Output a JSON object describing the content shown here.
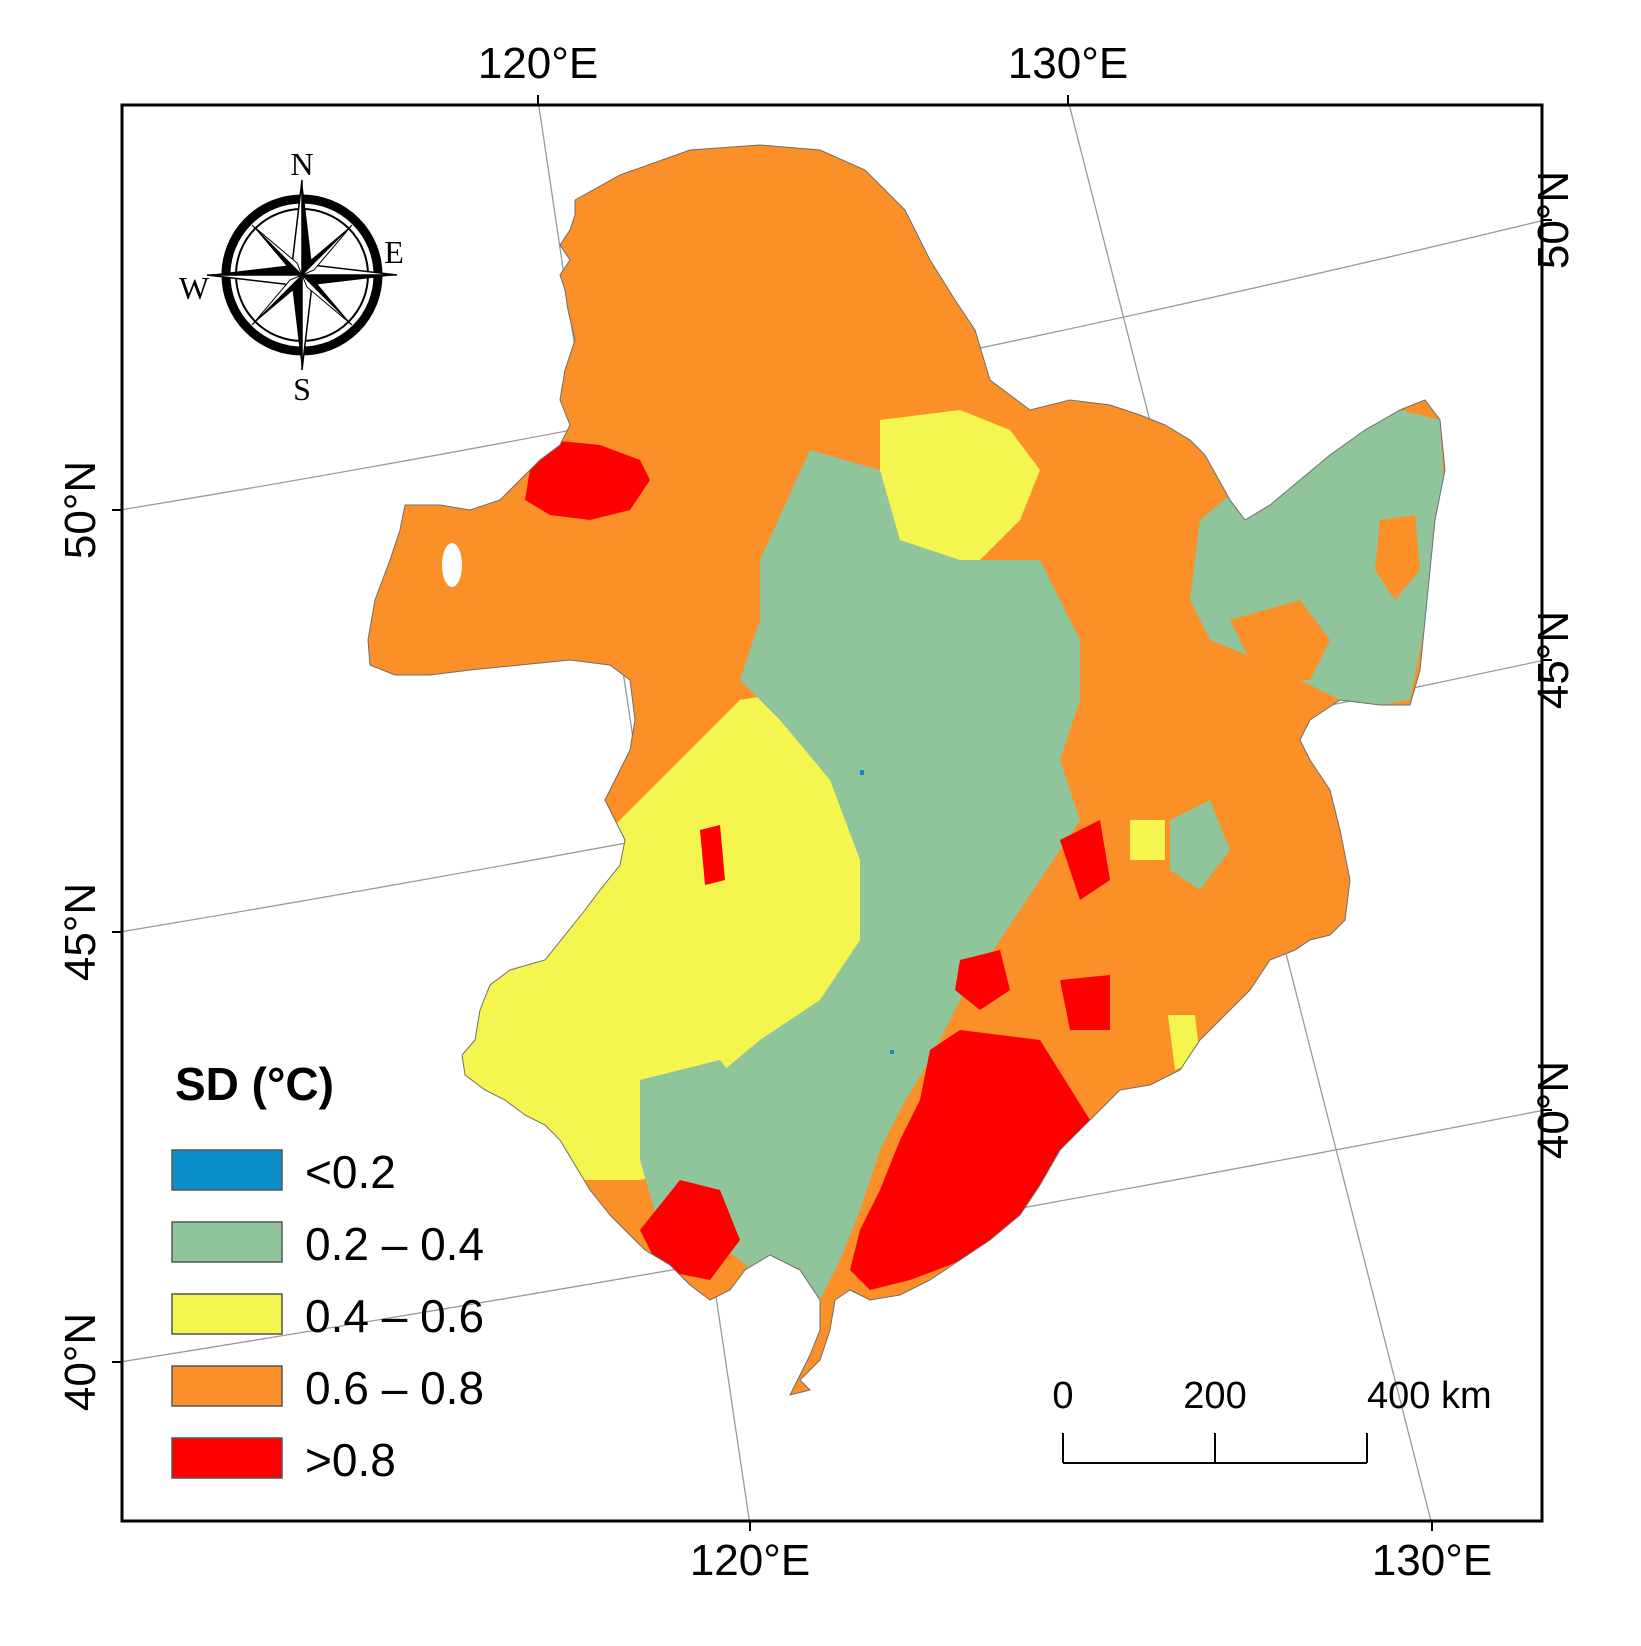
{
  "frame_labels": {
    "top": [
      "120°E",
      "130°E"
    ],
    "bottom": [
      "120°E",
      "130°E"
    ],
    "left": [
      "50°N",
      "45°N",
      "40°N"
    ],
    "right": [
      "50°N",
      "45°N",
      "40°N"
    ]
  },
  "compass": {
    "n": "N",
    "e": "E",
    "s": "S",
    "w": "W"
  },
  "legend": {
    "title": "SD (°C)",
    "items": [
      {
        "label": "<0.2",
        "color": "#0a8fc8"
      },
      {
        "label": "0.2 – 0.4",
        "color": "#90c49a"
      },
      {
        "label": "0.4 – 0.6",
        "color": "#f5f550"
      },
      {
        "label": "0.6 – 0.8",
        "color": "#fb9029"
      },
      {
        "label": ">0.8",
        "color": "#fe0000"
      }
    ]
  },
  "scale_bar": {
    "labels": [
      "0",
      "200",
      "400 km"
    ]
  }
}
